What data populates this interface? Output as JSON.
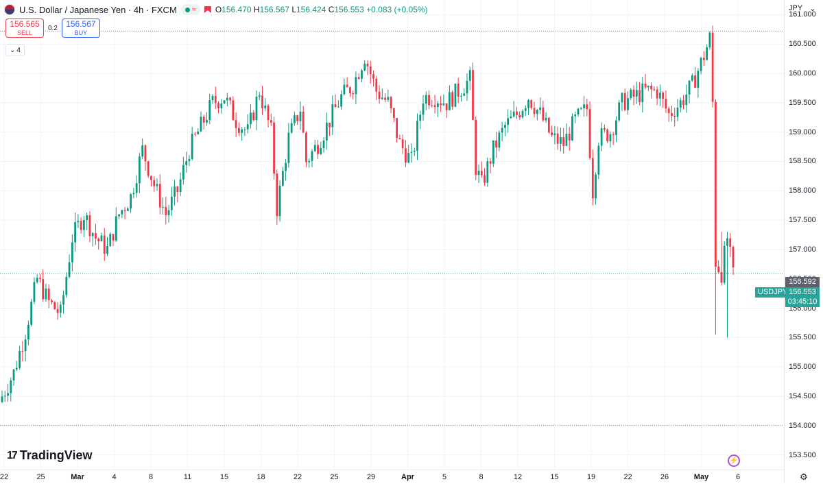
{
  "header": {
    "symbol_title": "U.S. Dollar / Japanese Yen · 4h · FXCM",
    "status_wave": "≈",
    "o_label": "O",
    "o_value": "156.470",
    "h_label": "H",
    "h_value": "156.567",
    "l_label": "L",
    "l_value": "156.424",
    "c_label": "C",
    "c_value": "156.553",
    "change": "+0.083 (+0.05%)"
  },
  "trade": {
    "sell_price": "156.565",
    "sell_label": "SELL",
    "spread": "0.2",
    "buy_price": "156.567",
    "buy_label": "BUY"
  },
  "indicators_collapse": {
    "count": "4",
    "chevron": "⌄"
  },
  "currency": {
    "code": "JPY",
    "chevron": "⌄"
  },
  "branding": {
    "logo_mark": "17",
    "name": "TradingView"
  },
  "price_labels": {
    "prev": "156.592",
    "last": "156.553",
    "countdown": "03:45:10",
    "symbol_tag": "USDJPY"
  },
  "icons": {
    "settings": "gear-icon",
    "bolt": "lightning-icon"
  },
  "colors": {
    "up": "#089981",
    "down": "#f23645",
    "last_price": "#26a69a",
    "prev_price": "#5d606b"
  },
  "chart_data": {
    "type": "candlestick",
    "y_ticks": [
      "161.000",
      "160.500",
      "160.000",
      "159.500",
      "159.000",
      "158.500",
      "158.000",
      "157.500",
      "157.000",
      "156.500",
      "156.000",
      "155.500",
      "155.000",
      "154.500",
      "154.000",
      "153.500"
    ],
    "ylim": [
      153.25,
      161.25
    ],
    "x_ticks": [
      "22",
      "25",
      "Mar",
      "4",
      "8",
      "11",
      "15",
      "18",
      "22",
      "25",
      "29",
      "Apr",
      "5",
      "8",
      "12",
      "15",
      "19",
      "22",
      "26",
      "May",
      "6"
    ],
    "high_line": 160.72,
    "low_line": 154.0,
    "prev_close_line": 156.592,
    "anchors": [
      {
        "i": 0,
        "p": 154.5
      },
      {
        "i": 4,
        "p": 154.9
      },
      {
        "i": 8,
        "p": 155.6
      },
      {
        "i": 12,
        "p": 156.5
      },
      {
        "i": 16,
        "p": 156.1
      },
      {
        "i": 20,
        "p": 155.9
      },
      {
        "i": 24,
        "p": 157.2
      },
      {
        "i": 28,
        "p": 157.6
      },
      {
        "i": 32,
        "p": 157.2
      },
      {
        "i": 36,
        "p": 157.0
      },
      {
        "i": 40,
        "p": 157.6
      },
      {
        "i": 44,
        "p": 157.9
      },
      {
        "i": 48,
        "p": 158.7
      },
      {
        "i": 52,
        "p": 158.1
      },
      {
        "i": 56,
        "p": 157.6
      },
      {
        "i": 60,
        "p": 158.0
      },
      {
        "i": 64,
        "p": 158.7
      },
      {
        "i": 68,
        "p": 159.1
      },
      {
        "i": 72,
        "p": 159.5
      },
      {
        "i": 76,
        "p": 159.6
      },
      {
        "i": 80,
        "p": 159.2
      },
      {
        "i": 84,
        "p": 159.0
      },
      {
        "i": 88,
        "p": 159.7
      },
      {
        "i": 92,
        "p": 159.0
      },
      {
        "i": 94,
        "p": 157.7
      },
      {
        "i": 98,
        "p": 158.9
      },
      {
        "i": 102,
        "p": 159.4
      },
      {
        "i": 104,
        "p": 158.5
      },
      {
        "i": 108,
        "p": 158.8
      },
      {
        "i": 112,
        "p": 159.2
      },
      {
        "i": 116,
        "p": 159.6
      },
      {
        "i": 120,
        "p": 159.8
      },
      {
        "i": 124,
        "p": 160.3
      },
      {
        "i": 128,
        "p": 159.7
      },
      {
        "i": 132,
        "p": 159.5
      },
      {
        "i": 136,
        "p": 158.8
      },
      {
        "i": 140,
        "p": 158.5
      },
      {
        "i": 144,
        "p": 159.6
      },
      {
        "i": 148,
        "p": 159.6
      },
      {
        "i": 152,
        "p": 159.5
      },
      {
        "i": 156,
        "p": 159.7
      },
      {
        "i": 160,
        "p": 159.9
      },
      {
        "i": 162,
        "p": 158.4
      },
      {
        "i": 164,
        "p": 158.1
      },
      {
        "i": 168,
        "p": 158.7
      },
      {
        "i": 172,
        "p": 159.1
      },
      {
        "i": 176,
        "p": 159.3
      },
      {
        "i": 180,
        "p": 159.6
      },
      {
        "i": 184,
        "p": 159.3
      },
      {
        "i": 188,
        "p": 158.9
      },
      {
        "i": 192,
        "p": 158.8
      },
      {
        "i": 196,
        "p": 159.2
      },
      {
        "i": 200,
        "p": 159.4
      },
      {
        "i": 202,
        "p": 158.0
      },
      {
        "i": 204,
        "p": 158.9
      },
      {
        "i": 208,
        "p": 159.0
      },
      {
        "i": 212,
        "p": 159.5
      },
      {
        "i": 216,
        "p": 159.6
      },
      {
        "i": 220,
        "p": 159.7
      },
      {
        "i": 224,
        "p": 159.7
      },
      {
        "i": 228,
        "p": 159.3
      },
      {
        "i": 232,
        "p": 159.5
      },
      {
        "i": 236,
        "p": 159.8
      },
      {
        "i": 240,
        "p": 160.3
      },
      {
        "i": 242,
        "p": 160.6
      },
      {
        "i": 243,
        "p": 159.5
      },
      {
        "i": 244,
        "p": 156.8
      },
      {
        "i": 246,
        "p": 156.6
      },
      {
        "i": 248,
        "p": 157.2
      },
      {
        "i": 250,
        "p": 156.55
      }
    ]
  }
}
